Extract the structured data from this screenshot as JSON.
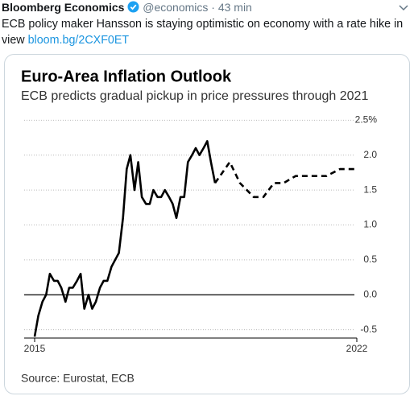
{
  "tweet": {
    "author": "Bloomberg Economics",
    "meta": "@economics · 43 min",
    "text": "ECB policy maker Hansson is staying optimistic on economy with a rate hike in view",
    "link": "bloom.bg/2CXF0ET"
  },
  "chart_data": {
    "type": "line",
    "title": "Euro-Area Inflation Outlook",
    "subtitle": "ECB predicts gradual pickup in price pressures through 2021",
    "source": "Source: Eurostat, ECB",
    "xlim": [
      2015,
      2022
    ],
    "xticks": [
      2015,
      2022
    ],
    "ylim": [
      -0.62,
      2.55
    ],
    "yticks": [
      {
        "value": 2.5,
        "label": "2.5%"
      },
      {
        "value": 2,
        "label": "2.0"
      },
      1.5,
      {
        "value": 1,
        "label": "1.0"
      },
      0.5,
      {
        "value": 0,
        "label": "0.0"
      },
      -0.5
    ],
    "grid": true,
    "series": [
      {
        "color": "#000000",
        "dash": "solid",
        "x": [
          2015.0,
          2015.08,
          2015.17,
          2015.25,
          2015.33,
          2015.42,
          2015.5,
          2015.58,
          2015.67,
          2015.75,
          2015.83,
          2015.92,
          2016.0,
          2016.08,
          2016.17,
          2016.25,
          2016.33,
          2016.42,
          2016.5,
          2016.58,
          2016.67,
          2016.75,
          2016.83,
          2016.92,
          2017.0,
          2017.08,
          2017.17,
          2017.25,
          2017.33,
          2017.42,
          2017.5,
          2017.58,
          2017.67,
          2017.75,
          2017.83,
          2017.92,
          2018.0,
          2018.08,
          2018.17,
          2018.25,
          2018.33,
          2018.42,
          2018.5,
          2018.58,
          2018.67,
          2018.75,
          2018.83,
          2018.92
        ],
        "values": [
          -0.6,
          -0.3,
          -0.1,
          0.0,
          0.3,
          0.2,
          0.2,
          0.1,
          -0.1,
          0.1,
          0.1,
          0.2,
          0.3,
          -0.2,
          0.0,
          -0.2,
          -0.1,
          0.1,
          0.2,
          0.2,
          0.4,
          0.5,
          0.6,
          1.1,
          1.8,
          2.0,
          1.5,
          1.9,
          1.4,
          1.3,
          1.3,
          1.5,
          1.4,
          1.4,
          1.5,
          1.4,
          1.3,
          1.1,
          1.4,
          1.4,
          1.9,
          2.0,
          2.1,
          2.0,
          2.1,
          2.2,
          1.9,
          1.6
        ]
      },
      {
        "color": "#000000",
        "dash": "dashed",
        "x": [
          2018.92,
          2019.24,
          2019.46,
          2019.76,
          2019.97,
          2020.2,
          2020.41,
          2020.67,
          2021.34,
          2021.63,
          2021.95
        ],
        "values": [
          1.6,
          1.9,
          1.6,
          1.4,
          1.4,
          1.6,
          1.6,
          1.7,
          1.7,
          1.8,
          1.8
        ]
      }
    ]
  }
}
